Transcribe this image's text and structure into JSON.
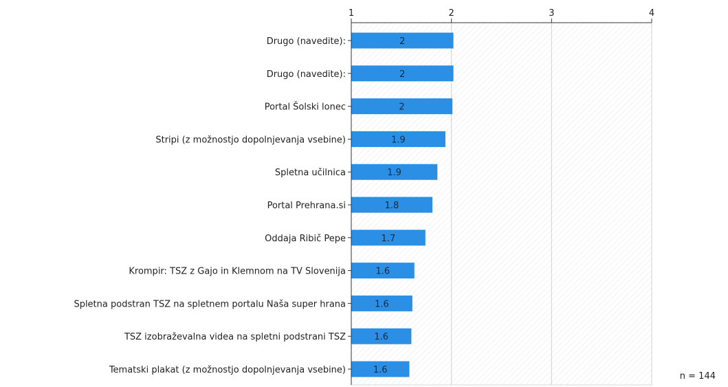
{
  "chart_data": {
    "type": "bar",
    "orientation": "horizontal",
    "categories": [
      "Drugo (navedite):",
      "Drugo (navedite):",
      "Portal Šolski lonec",
      "Stripi (z možnostjo dopolnjevanja vsebine)",
      "Spletna učilnica",
      "Portal Prehrana.si",
      "Oddaja Ribič Pepe",
      "Krompir: TSZ z Gajo in Klemnom na TV Slovenija",
      "Spletna podstran TSZ na spletnem portalu Naša super hrana",
      "TSZ izobraževalna videa na spletni podstrani TSZ",
      "Tematski plakat (z možnostjo dopolnjevanja vsebine)"
    ],
    "values": [
      2.02,
      2.02,
      2.01,
      1.94,
      1.86,
      1.81,
      1.74,
      1.63,
      1.61,
      1.6,
      1.58
    ],
    "value_labels": [
      "2",
      "2",
      "2",
      "1.9",
      "1.9",
      "1.8",
      "1.7",
      "1.6",
      "1.6",
      "1.6",
      "1.6"
    ],
    "xlim": [
      1,
      4
    ],
    "xticks": [
      1,
      2,
      3,
      4
    ],
    "xtick_labels": [
      "1",
      "2",
      "3",
      "4"
    ],
    "title": "",
    "xlabel": "",
    "ylabel": "",
    "grid": true,
    "bar_color": "#2b8fe6"
  },
  "footnote": "n = 144"
}
